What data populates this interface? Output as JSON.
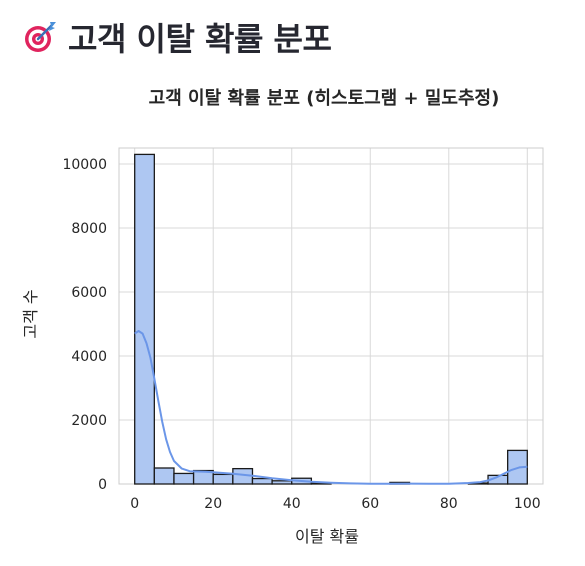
{
  "header": {
    "title": "고객 이탈 확률 분포",
    "icon": "target-dart-icon"
  },
  "colors": {
    "bar_fill": "#aec7f2",
    "bar_stroke": "#1a1a1a",
    "kde_line": "#6b96e8",
    "grid": "#d9d9d9",
    "text": "#262626"
  },
  "chart_data": {
    "type": "bar",
    "title": "고객 이탈 확률 분포 (히스토그램 + 밀도추정)",
    "xlabel": "이탈 확률",
    "ylabel": "고객 수",
    "xlim": [
      -4,
      104
    ],
    "ylim": [
      0,
      10500
    ],
    "xticks": [
      0,
      20,
      40,
      60,
      80,
      100
    ],
    "yticks": [
      0,
      2000,
      4000,
      6000,
      8000,
      10000
    ],
    "grid": true,
    "bin_width": 5,
    "bins": [
      {
        "x0": 0,
        "x1": 5,
        "count": 10300
      },
      {
        "x0": 5,
        "x1": 10,
        "count": 500
      },
      {
        "x0": 10,
        "x1": 15,
        "count": 330
      },
      {
        "x0": 15,
        "x1": 20,
        "count": 420
      },
      {
        "x0": 20,
        "x1": 25,
        "count": 300
      },
      {
        "x0": 25,
        "x1": 30,
        "count": 480
      },
      {
        "x0": 30,
        "x1": 35,
        "count": 170
      },
      {
        "x0": 35,
        "x1": 40,
        "count": 100
      },
      {
        "x0": 40,
        "x1": 45,
        "count": 180
      },
      {
        "x0": 45,
        "x1": 50,
        "count": 30
      },
      {
        "x0": 50,
        "x1": 55,
        "count": 0
      },
      {
        "x0": 55,
        "x1": 60,
        "count": 0
      },
      {
        "x0": 60,
        "x1": 65,
        "count": 0
      },
      {
        "x0": 65,
        "x1": 70,
        "count": 50
      },
      {
        "x0": 70,
        "x1": 75,
        "count": 0
      },
      {
        "x0": 75,
        "x1": 80,
        "count": 0
      },
      {
        "x0": 80,
        "x1": 85,
        "count": 0
      },
      {
        "x0": 85,
        "x1": 90,
        "count": 30
      },
      {
        "x0": 90,
        "x1": 95,
        "count": 270
      },
      {
        "x0": 95,
        "x1": 100,
        "count": 1050
      }
    ],
    "kde": {
      "x": [
        0,
        1,
        2,
        3,
        4,
        5,
        6,
        7,
        8,
        9,
        10,
        12,
        14,
        16,
        18,
        20,
        25,
        30,
        35,
        40,
        45,
        50,
        55,
        60,
        65,
        70,
        75,
        80,
        85,
        88,
        90,
        92,
        94,
        96,
        98,
        100
      ],
      "y": [
        4700,
        4780,
        4700,
        4400,
        3950,
        3300,
        2600,
        1950,
        1400,
        1000,
        720,
        480,
        400,
        390,
        380,
        370,
        320,
        260,
        180,
        120,
        70,
        40,
        20,
        10,
        10,
        12,
        10,
        10,
        30,
        60,
        110,
        200,
        320,
        440,
        520,
        540
      ]
    }
  }
}
